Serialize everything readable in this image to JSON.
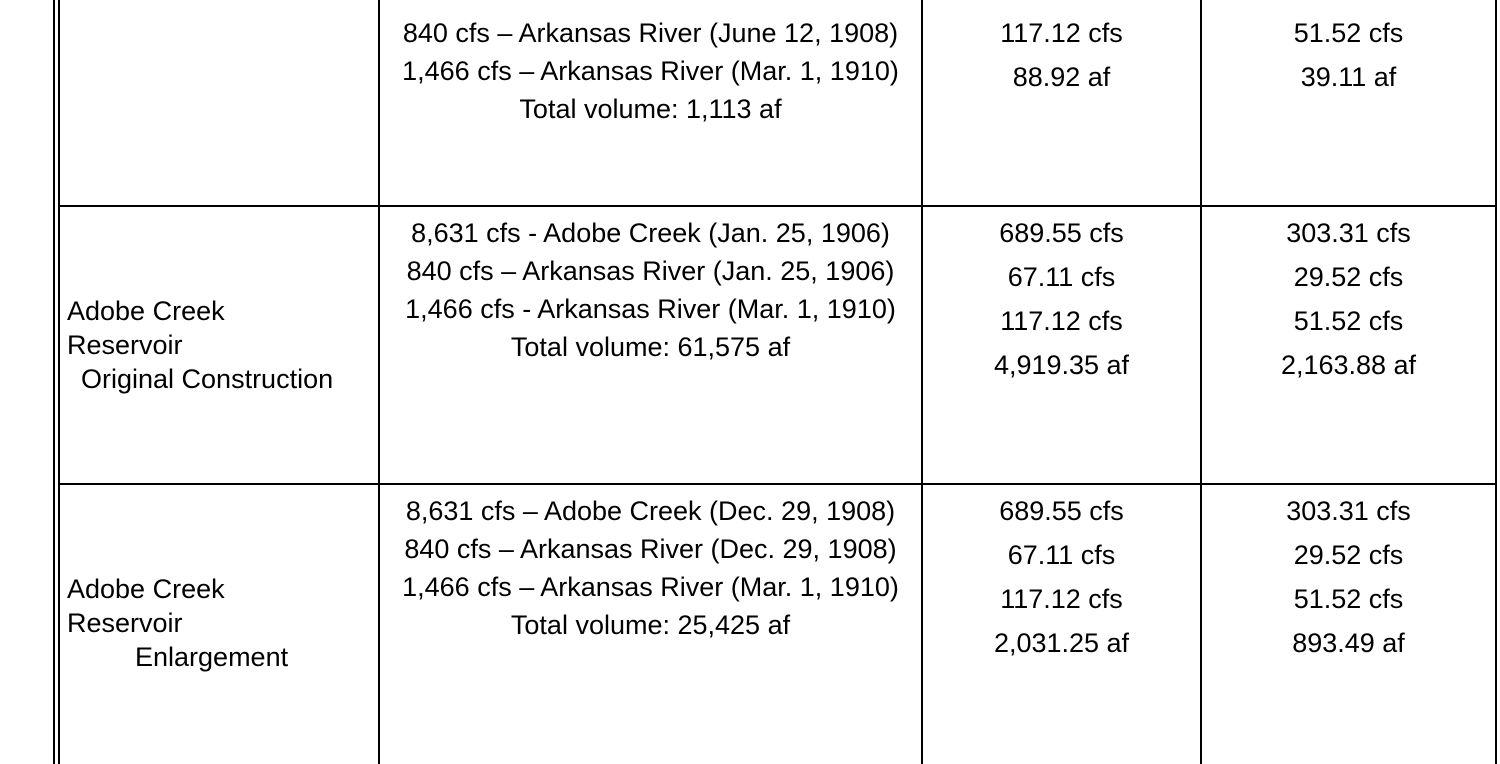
{
  "rows": [
    {
      "name": [
        "",
        "",
        ""
      ],
      "rights": [
        "840 cfs – Arkansas River (June 12, 1908)",
        "1,466 cfs – Arkansas River (Mar. 1, 1910)"
      ],
      "total": "Total volume:  1,113 af",
      "col3": [
        "117.12 cfs",
        "88.92 af"
      ],
      "col4": [
        "51.52 cfs",
        "39.11 af"
      ]
    },
    {
      "name": [
        "Adobe Creek",
        "Reservoir",
        "Original Construction"
      ],
      "rights": [
        "8,631 cfs  - Adobe Creek (Jan. 25, 1906)",
        "840 cfs – Arkansas River (Jan. 25, 1906)",
        "1,466 cfs - Arkansas River (Mar. 1, 1910)"
      ],
      "total": "Total volume:  61,575 af",
      "col3": [
        "689.55 cfs",
        "67.11 cfs",
        "117.12 cfs",
        "4,919.35 af"
      ],
      "col4": [
        "303.31 cfs",
        "29.52 cfs",
        "51.52 cfs",
        "2,163.88 af"
      ]
    },
    {
      "name": [
        "Adobe Creek",
        "Reservoir",
        "Enlargement"
      ],
      "rights": [
        "8,631 cfs – Adobe Creek (Dec. 29, 1908)",
        "840 cfs – Arkansas River (Dec. 29, 1908)",
        "1,466 cfs – Arkansas River (Mar. 1, 1910)"
      ],
      "total": "Total volume:  25,425 af",
      "col3": [
        "689.55 cfs",
        "67.11 cfs",
        "117.12 cfs",
        "2,031.25 af"
      ],
      "col4": [
        "303.31 cfs",
        "29.52 cfs",
        "51.52 cfs",
        "893.49 af"
      ]
    }
  ]
}
